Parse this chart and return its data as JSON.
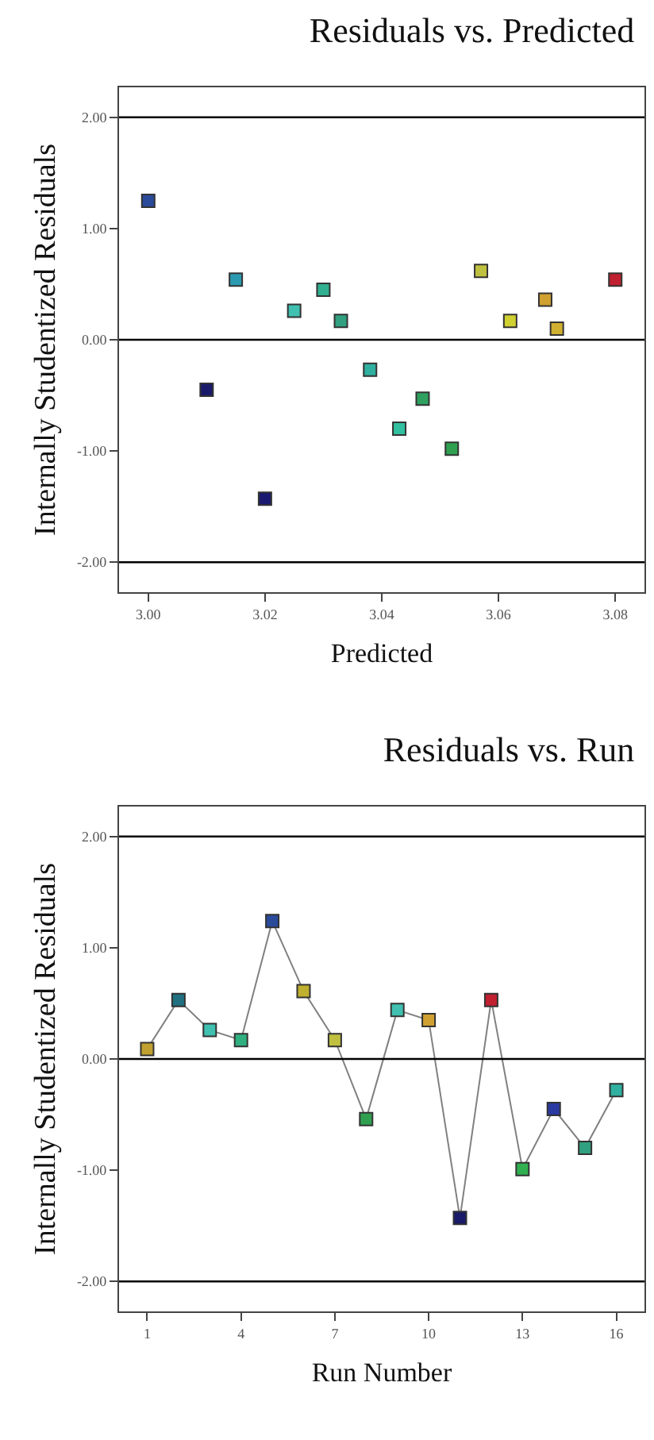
{
  "chart_data": [
    {
      "type": "scatter",
      "title": "Residuals vs. Predicted",
      "xlabel": "Predicted",
      "ylabel": "Internally Studentized Residuals",
      "x": [
        3.0,
        3.01,
        3.015,
        3.02,
        3.025,
        3.03,
        3.033,
        3.038,
        3.043,
        3.047,
        3.052,
        3.057,
        3.062,
        3.068,
        3.07,
        3.08
      ],
      "values": [
        1.25,
        -0.45,
        0.54,
        -1.43,
        0.26,
        0.45,
        0.17,
        -0.27,
        -0.8,
        -0.53,
        -0.98,
        0.62,
        0.17,
        0.36,
        0.1,
        0.54
      ],
      "colors": [
        "#2a4a9a",
        "#1a1a6a",
        "#2a9ab0",
        "#1a1a70",
        "#40c0b0",
        "#30b090",
        "#30a080",
        "#30b0a0",
        "#30c0a0",
        "#30a060",
        "#30a050",
        "#c0c040",
        "#d0d030",
        "#d0a030",
        "#d0b030",
        "#c02030"
      ],
      "xlim": [
        2.995,
        3.085
      ],
      "xticks": [
        {
          "value": 3.0,
          "label": "3.00"
        },
        {
          "value": 3.02,
          "label": "3.02"
        },
        {
          "value": 3.04,
          "label": "3.04"
        },
        {
          "value": 3.06,
          "label": "3.06"
        },
        {
          "value": 3.08,
          "label": "3.08"
        }
      ],
      "ylim": [
        -2.27,
        2.27
      ],
      "yticks": [
        {
          "value": -2,
          "label": "-2.00"
        },
        {
          "value": -1,
          "label": "-1.00"
        },
        {
          "value": 0,
          "label": "0.00"
        },
        {
          "value": 1,
          "label": "1.00"
        },
        {
          "value": 2,
          "label": "2.00"
        }
      ],
      "ref_lines": [
        {
          "axis": "y",
          "value": 2,
          "color": "#000000"
        },
        {
          "axis": "y",
          "value": 0,
          "color": "#000000"
        },
        {
          "axis": "y",
          "value": -2,
          "color": "#000000"
        }
      ],
      "marker": "square",
      "grid": false
    },
    {
      "type": "line",
      "title": "Residuals vs. Run",
      "xlabel": "Run Number",
      "ylabel": "Internally Studentized Residuals",
      "x": [
        1,
        2,
        3,
        4,
        5,
        6,
        7,
        8,
        9,
        10,
        11,
        12,
        13,
        14,
        15,
        16
      ],
      "series": [
        {
          "color": "#808080",
          "values": [
            0.09,
            0.53,
            0.26,
            0.17,
            1.24,
            0.61,
            0.17,
            -0.54,
            0.44,
            0.35,
            -1.43,
            0.53,
            -0.99,
            -0.45,
            -0.8,
            -0.28
          ],
          "colors": [
            "#c0a030",
            "#207080",
            "#40c0b0",
            "#30b080",
            "#2a4a9a",
            "#c0b030",
            "#c0c040",
            "#30a050",
            "#40c0b0",
            "#d0a030",
            "#1a1a6a",
            "#c02030",
            "#30b050",
            "#2a3aa0",
            "#30a080",
            "#30b0a0"
          ]
        }
      ],
      "xlim": [
        0.1,
        16.9
      ],
      "xticks": [
        1,
        4,
        7,
        10,
        13,
        16
      ],
      "ylim": [
        -2.27,
        2.27
      ],
      "yticks": [
        {
          "value": -2,
          "label": "-2.00"
        },
        {
          "value": -1,
          "label": "-1.00"
        },
        {
          "value": 0,
          "label": "0.00"
        },
        {
          "value": 1,
          "label": "1.00"
        },
        {
          "value": 2,
          "label": "2.00"
        }
      ],
      "ref_lines": [
        {
          "axis": "y",
          "value": 2,
          "color": "#000000"
        },
        {
          "axis": "y",
          "value": 0,
          "color": "#000000"
        },
        {
          "axis": "y",
          "value": -2,
          "color": "#000000"
        }
      ],
      "marker": "square",
      "line_style": "solid",
      "grid": false
    }
  ]
}
